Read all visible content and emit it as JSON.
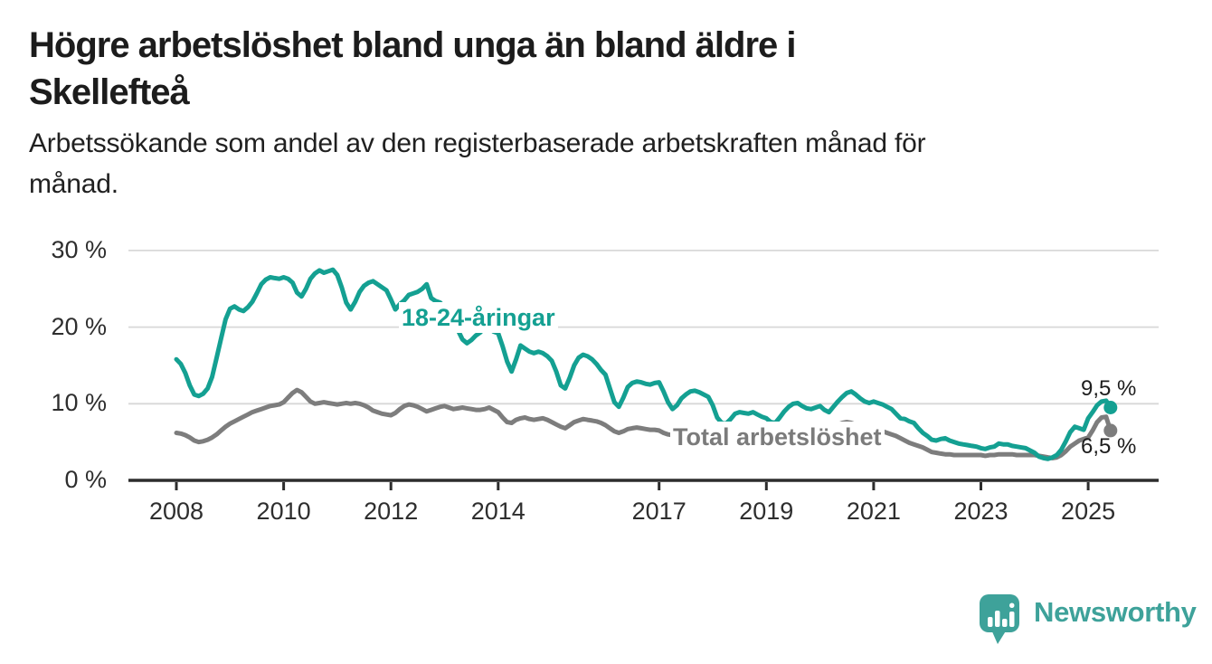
{
  "header": {
    "title_line1": "Högre arbetslöshet bland unga än bland äldre i",
    "title_line2": "Skellefteå",
    "subtitle_line1": "Arbetssökande som andel av den registerbaserade arbetskraften månad för",
    "subtitle_line2": "månad."
  },
  "branding": {
    "logo_text": "Newsworthy",
    "logo_icon": "bar-chart-speech-bubble-icon",
    "logo_color": "#3EA29A"
  },
  "chart_data": {
    "type": "line",
    "title": "Högre arbetslöshet bland unga än bland äldre i Skellefteå",
    "subtitle": "Arbetssökande som andel av den registerbaserade arbetskraften månad för månad.",
    "xlabel": "",
    "ylabel": "",
    "x_start_year": 2008,
    "x_interval_years": 0.0833333,
    "x_unit": "monthly",
    "xlim": [
      2007.1,
      2026.3
    ],
    "ylim": [
      0,
      31.5
    ],
    "grid": "horizontal-only",
    "legend_position": "inline-annotations",
    "x_tick_values": [
      2008,
      2010,
      2012,
      2014,
      2017,
      2019,
      2021,
      2023,
      2025
    ],
    "x_tick_labels": [
      "2008",
      "2010",
      "2012",
      "2014",
      "2017",
      "2019",
      "2021",
      "2023",
      "2025"
    ],
    "y_tick_values": [
      0,
      10,
      20,
      30
    ],
    "y_tick_labels": [
      "0 %",
      "10 %",
      "20 %",
      "30 %"
    ],
    "colors": {
      "axis": "#2d2d2d",
      "grid": "#d8d8d8",
      "text": "#2e2e2e",
      "background": "#ffffff"
    },
    "series": [
      {
        "name": "18-24-åringar",
        "color": "#14A092",
        "end_label": "9,5 %",
        "end_value": 9.5,
        "values": [
          15.8,
          15.2,
          14.0,
          12.4,
          11.2,
          11.0,
          11.3,
          12.0,
          13.5,
          16.0,
          18.5,
          21.0,
          22.4,
          22.7,
          22.3,
          22.1,
          22.6,
          23.3,
          24.4,
          25.6,
          26.2,
          26.5,
          26.4,
          26.3,
          26.5,
          26.3,
          25.8,
          24.5,
          24.0,
          25.0,
          26.3,
          27.0,
          27.4,
          27.1,
          27.3,
          27.5,
          26.8,
          25.2,
          23.2,
          22.3,
          23.3,
          24.6,
          25.4,
          25.8,
          26.0,
          25.6,
          25.2,
          24.8,
          23.6,
          22.3,
          23.0,
          23.5,
          24.2,
          24.4,
          24.6,
          25.0,
          25.6,
          23.8,
          23.4,
          23.2,
          22.6,
          21.8,
          20.8,
          19.6,
          18.4,
          17.9,
          18.3,
          18.9,
          19.3,
          20.0,
          19.8,
          19.4,
          19.2,
          17.5,
          15.5,
          14.2,
          15.8,
          17.6,
          17.2,
          16.8,
          16.6,
          16.8,
          16.6,
          16.2,
          15.6,
          14.2,
          12.4,
          12.0,
          13.4,
          15.0,
          16.0,
          16.4,
          16.2,
          15.8,
          15.2,
          14.4,
          13.8,
          12.0,
          10.2,
          9.6,
          10.8,
          12.2,
          12.7,
          12.9,
          12.8,
          12.6,
          12.5,
          12.7,
          12.8,
          11.6,
          10.2,
          9.3,
          9.8,
          10.7,
          11.2,
          11.6,
          11.7,
          11.5,
          11.2,
          10.9,
          9.8,
          8.2,
          7.5,
          7.4,
          8.0,
          8.7,
          8.9,
          8.8,
          8.7,
          8.9,
          8.6,
          8.3,
          8.1,
          7.6,
          7.5,
          8.2,
          9.0,
          9.6,
          10.0,
          10.1,
          9.7,
          9.4,
          9.3,
          9.5,
          9.7,
          9.2,
          8.9,
          9.6,
          10.3,
          10.9,
          11.4,
          11.6,
          11.2,
          10.7,
          10.3,
          10.1,
          10.3,
          10.1,
          9.9,
          9.6,
          9.3,
          8.7,
          8.1,
          8.0,
          7.7,
          7.5,
          6.8,
          6.2,
          5.8,
          5.3,
          5.2,
          5.4,
          5.5,
          5.2,
          5.0,
          4.8,
          4.7,
          4.6,
          4.5,
          4.4,
          4.2,
          4.1,
          4.3,
          4.4,
          4.8,
          4.7,
          4.7,
          4.5,
          4.4,
          4.3,
          4.2,
          3.9,
          3.6,
          3.1,
          2.9,
          2.8,
          3.0,
          3.3,
          4.0,
          5.1,
          6.3,
          7.0,
          6.8,
          6.6,
          8.1,
          8.9,
          9.8,
          10.3,
          10.4,
          9.5
        ]
      },
      {
        "name": "Total arbetslöshet",
        "color": "#7d7d7d",
        "end_label": "6,5 %",
        "end_value": 6.5,
        "values": [
          6.2,
          6.1,
          5.9,
          5.6,
          5.2,
          5.0,
          5.1,
          5.3,
          5.6,
          6.0,
          6.5,
          7.0,
          7.4,
          7.7,
          8.0,
          8.3,
          8.6,
          8.9,
          9.1,
          9.3,
          9.5,
          9.7,
          9.8,
          9.9,
          10.2,
          10.8,
          11.4,
          11.8,
          11.5,
          10.9,
          10.3,
          10.0,
          10.1,
          10.2,
          10.1,
          10.0,
          9.9,
          10.0,
          10.1,
          10.0,
          10.1,
          10.0,
          9.8,
          9.5,
          9.1,
          8.9,
          8.7,
          8.6,
          8.5,
          8.8,
          9.3,
          9.7,
          9.9,
          9.8,
          9.6,
          9.3,
          9.0,
          9.2,
          9.4,
          9.6,
          9.7,
          9.5,
          9.3,
          9.4,
          9.5,
          9.4,
          9.3,
          9.2,
          9.2,
          9.3,
          9.5,
          9.2,
          8.9,
          8.2,
          7.6,
          7.5,
          7.9,
          8.1,
          8.2,
          8.0,
          7.9,
          8.0,
          8.1,
          7.9,
          7.6,
          7.3,
          7.0,
          6.8,
          7.2,
          7.6,
          7.8,
          8.0,
          7.9,
          7.8,
          7.7,
          7.5,
          7.2,
          6.8,
          6.4,
          6.2,
          6.4,
          6.7,
          6.8,
          6.9,
          6.8,
          6.7,
          6.6,
          6.6,
          6.5,
          6.2,
          6.0,
          5.9,
          6.0,
          6.2,
          6.3,
          6.4,
          6.3,
          6.2,
          6.2,
          6.1,
          6.0,
          5.8,
          5.6,
          5.5,
          5.6,
          5.8,
          5.9,
          5.9,
          5.8,
          5.7,
          5.6,
          5.5,
          5.4,
          5.3,
          5.2,
          5.3,
          5.5,
          5.7,
          5.8,
          5.9,
          5.8,
          5.7,
          5.7,
          5.8,
          6.0,
          6.2,
          6.5,
          7.0,
          7.3,
          7.5,
          7.6,
          7.5,
          7.3,
          7.1,
          6.9,
          6.8,
          6.7,
          6.6,
          6.4,
          6.2,
          6.0,
          5.8,
          5.5,
          5.2,
          4.9,
          4.7,
          4.5,
          4.3,
          4.0,
          3.7,
          3.6,
          3.5,
          3.4,
          3.4,
          3.3,
          3.3,
          3.3,
          3.3,
          3.3,
          3.3,
          3.3,
          3.2,
          3.3,
          3.3,
          3.4,
          3.4,
          3.4,
          3.4,
          3.3,
          3.3,
          3.3,
          3.3,
          3.3,
          3.2,
          3.1,
          3.0,
          2.9,
          3.0,
          3.3,
          3.8,
          4.4,
          4.8,
          5.2,
          5.4,
          5.6,
          6.5,
          7.6,
          8.2,
          8.3,
          6.5
        ]
      }
    ]
  }
}
